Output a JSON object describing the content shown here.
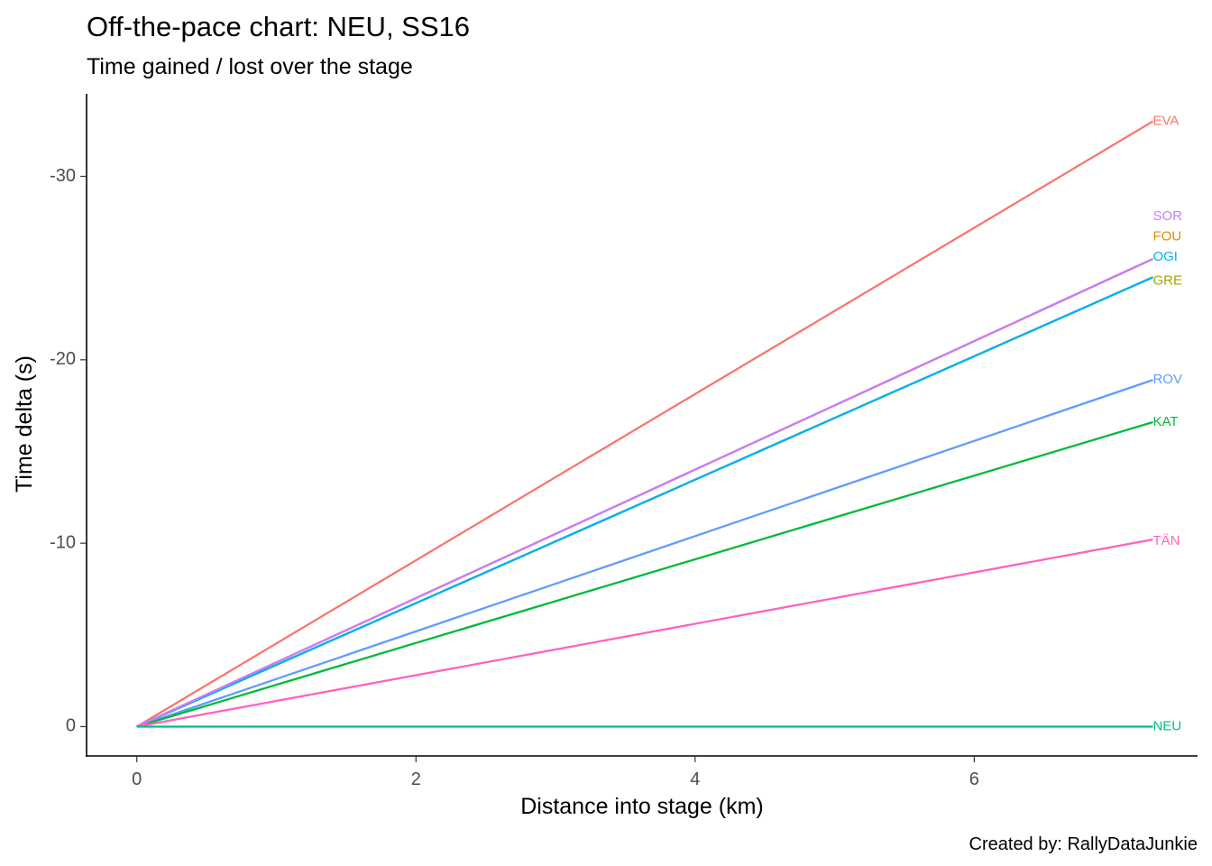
{
  "colors": {
    "axis": "#000000",
    "tick_label": "#4d4d4d",
    "background": "#ffffff"
  },
  "chart_data": {
    "type": "line",
    "title": "Off-the-pace chart: NEU, SS16",
    "subtitle": "Time gained / lost over the stage",
    "xlabel": "Distance into stage (km)",
    "ylabel": "Time delta (s)",
    "caption": "Created by: RallyDataJunkie",
    "xlim": [
      -0.36,
      7.6
    ],
    "ylim": [
      1.6,
      -34.5
    ],
    "y_reversed": true,
    "x_ticks": [
      {
        "value": 0,
        "label": "0"
      },
      {
        "value": 2,
        "label": "2"
      },
      {
        "value": 4,
        "label": "4"
      },
      {
        "value": 6,
        "label": "6"
      }
    ],
    "y_ticks": [
      {
        "value": 0,
        "label": "0"
      },
      {
        "value": -10,
        "label": "-10"
      },
      {
        "value": -20,
        "label": "-20"
      },
      {
        "value": -30,
        "label": "-30"
      }
    ],
    "grid": false,
    "legend": "none",
    "series": [
      {
        "name": "EVA",
        "color": "#F8766D",
        "x": [
          0,
          7.28
        ],
        "y": [
          0,
          -33.0
        ],
        "label_y": -33.0
      },
      {
        "name": "GRE",
        "color": "#A3A500",
        "x": [
          0,
          7.28
        ],
        "y": [
          0,
          -24.5
        ],
        "label_y": -24.3
      },
      {
        "name": "KAT",
        "color": "#00BA38",
        "x": [
          0,
          7.28
        ],
        "y": [
          0,
          -16.6
        ],
        "label_y": -16.6
      },
      {
        "name": "NEU",
        "color": "#00BF7D",
        "x": [
          0,
          7.28
        ],
        "y": [
          0,
          0.0
        ],
        "label_y": 0.0
      },
      {
        "name": "OGI",
        "color": "#00B0F6",
        "x": [
          0,
          7.28
        ],
        "y": [
          0,
          -24.5
        ],
        "label_y": -25.6
      },
      {
        "name": "ROV",
        "color": "#619CFF",
        "x": [
          0,
          7.28
        ],
        "y": [
          0,
          -18.9
        ],
        "label_y": -18.9
      },
      {
        "name": "FOU",
        "color": "#D89000",
        "x": [
          0,
          7.28
        ],
        "y": [
          0,
          -25.5
        ],
        "label_y": -26.7
      },
      {
        "name": "SOR",
        "color": "#C77CFF",
        "x": [
          0,
          7.28
        ],
        "y": [
          0,
          -25.5
        ],
        "label_y": -27.8
      },
      {
        "name": "TÄN",
        "color": "#FF61C3",
        "x": [
          0,
          7.28
        ],
        "y": [
          0,
          -10.2
        ],
        "label_y": -10.1
      }
    ],
    "draw_order": [
      "EVA",
      "GRE",
      "FOU",
      "OGI",
      "ROV",
      "KAT",
      "SOR",
      "TÄN",
      "NEU"
    ]
  }
}
